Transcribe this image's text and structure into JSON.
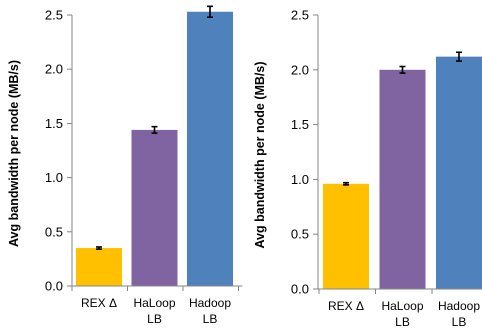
{
  "chart_data": [
    {
      "type": "bar",
      "categories": [
        [
          "REX Δ"
        ],
        [
          "HaLoop",
          "LB"
        ],
        [
          "Hadoop",
          "LB"
        ]
      ],
      "values": [
        0.35,
        1.44,
        2.53
      ],
      "error": [
        0.01,
        0.03,
        0.05
      ],
      "colors": [
        "#FFC000",
        "#8064A2",
        "#4F81BD"
      ],
      "xlabel": "",
      "ylabel": "Avg bandwidth per node (MB/s)",
      "ylim": [
        0,
        2.5
      ],
      "yticks": [
        "0.0",
        "0.5",
        "1.0",
        "1.5",
        "2.0",
        "2.5"
      ],
      "grid": false
    },
    {
      "type": "bar",
      "categories": [
        [
          "REX Δ"
        ],
        [
          "HaLoop",
          "LB"
        ],
        [
          "Hadoop",
          "LB"
        ]
      ],
      "values": [
        0.96,
        2.0,
        2.12
      ],
      "error": [
        0.01,
        0.03,
        0.04
      ],
      "colors": [
        "#FFC000",
        "#8064A2",
        "#4F81BD"
      ],
      "xlabel": "",
      "ylabel": "Avg bandwidth per node (MB/s)",
      "ylim": [
        0,
        2.5
      ],
      "yticks": [
        "0.0",
        "0.5",
        "1.0",
        "1.5",
        "2.0",
        "2.5"
      ],
      "grid": false
    }
  ]
}
